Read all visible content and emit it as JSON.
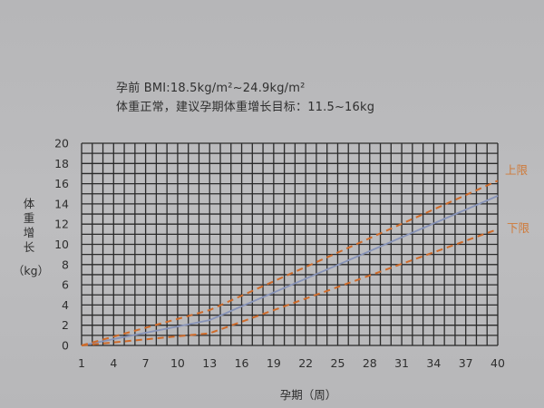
{
  "header": {
    "line1": "孕前 BMI:18.5kg/m²~24.9kg/m²",
    "line2": "体重正常，建议孕期体重增长目标：11.5~16kg"
  },
  "colors": {
    "grid": "#2a2a2a",
    "average_line": "#8793b8",
    "limit_lines": "#cf6b2a",
    "limit_labels": "#cf7a3a"
  },
  "chart_data": {
    "type": "line",
    "title": "",
    "xlabel": "孕期（周）",
    "ylabel_chars": [
      "体",
      "重",
      "增",
      "长"
    ],
    "yunit": "（kg）",
    "xlim": [
      1,
      40
    ],
    "ylim": [
      0,
      20
    ],
    "xticks": [
      1,
      4,
      7,
      10,
      13,
      16,
      19,
      22,
      25,
      28,
      31,
      34,
      37,
      40
    ],
    "yticks": [
      0,
      2,
      4,
      6,
      8,
      10,
      12,
      14,
      16,
      18,
      20
    ],
    "grid": true,
    "series": [
      {
        "key": "average",
        "name": "",
        "style": "solid",
        "x": [
          1,
          13,
          40
        ],
        "y": [
          0,
          2.5,
          14.8
        ]
      },
      {
        "key": "upper",
        "name": "上限",
        "style": "dashed",
        "x": [
          1,
          13,
          40
        ],
        "y": [
          0,
          3.5,
          16.3
        ]
      },
      {
        "key": "lower",
        "name": "下限",
        "style": "dashed",
        "x": [
          1,
          13,
          40
        ],
        "y": [
          0,
          1.2,
          11.5
        ]
      }
    ]
  }
}
